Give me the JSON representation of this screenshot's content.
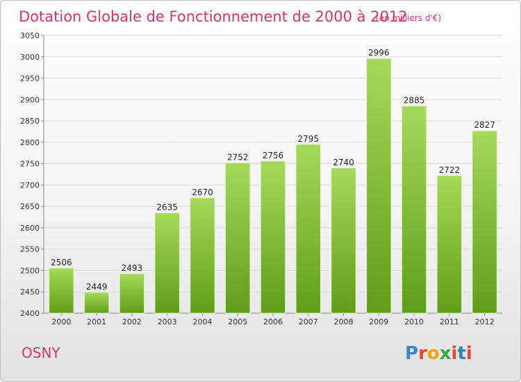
{
  "colors": {
    "bar_light": "#a6d95a",
    "bar_dark": "#5f9e18",
    "title": "#d63568",
    "grid": "#d9d9d9",
    "logo_letters": [
      "#3a86c8",
      "#e34a2f",
      "#f2a20c",
      "#3aa84a",
      "#e34a2f",
      "#2f7fc6",
      "#e34a2f"
    ]
  },
  "footer": {
    "commune": "OSNY",
    "logo_text": "Proxiti"
  },
  "chart_data": {
    "type": "bar",
    "title": "Dotation Globale de Fonctionnement de 2000 à 2012",
    "subtitle": "(en milliers d'€)",
    "xlabel": "",
    "ylabel": "",
    "categories": [
      "2000",
      "2001",
      "2002",
      "2003",
      "2004",
      "2005",
      "2006",
      "2007",
      "2008",
      "2009",
      "2010",
      "2011",
      "2012"
    ],
    "values": [
      2506,
      2449,
      2493,
      2635,
      2670,
      2752,
      2756,
      2795,
      2740,
      2996,
      2885,
      2722,
      2827
    ],
    "ylim": [
      2400,
      3050
    ],
    "yticks": [
      2400,
      2450,
      2500,
      2550,
      2600,
      2650,
      2700,
      2750,
      2800,
      2850,
      2900,
      2950,
      3000,
      3050
    ],
    "grid": true,
    "legend": "none"
  }
}
